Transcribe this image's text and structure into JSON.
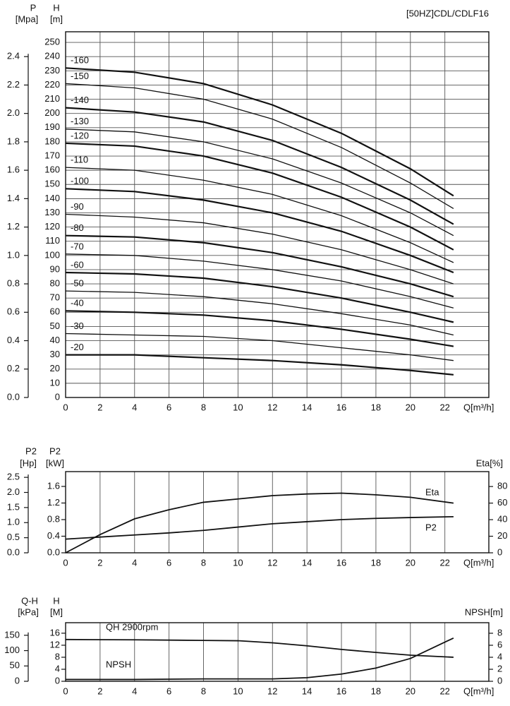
{
  "chart_data": [
    {
      "type": "line",
      "title": "[50HZ]CDL/CDLF16",
      "xlabel": "Q[m³/h]",
      "xlim": [
        0,
        24.55
      ],
      "xticks": [
        0,
        2,
        4,
        6,
        8,
        10,
        12,
        14,
        16,
        18,
        20,
        22
      ],
      "ylabel": "H",
      "yunit": "[m]",
      "ylim": [
        0,
        257.5
      ],
      "yticks": [
        0,
        10,
        20,
        30,
        40,
        50,
        60,
        70,
        80,
        90,
        100,
        110,
        120,
        130,
        140,
        150,
        160,
        170,
        180,
        190,
        200,
        210,
        220,
        230,
        240,
        250
      ],
      "y2label": "P",
      "y2unit": "[Mpa]",
      "y2side": "left",
      "y2lim": [
        0,
        2.575
      ],
      "y2ticks": [
        {
          "value": 0,
          "label": "0.0"
        },
        0.2,
        0.4,
        0.6,
        0.8,
        {
          "value": 1,
          "label": "1.0"
        },
        1.2,
        1.4,
        1.6,
        1.8,
        {
          "value": 2,
          "label": "2.0"
        },
        2.2,
        2.4
      ],
      "grid": "both",
      "x": [
        0,
        4,
        8,
        12,
        16,
        20,
        22.5
      ],
      "series": [
        {
          "name": "-160",
          "color": "#111111",
          "values": [
            232,
            229,
            221,
            206,
            186,
            161,
            142
          ]
        },
        {
          "name": "-150",
          "color": "#111111",
          "values": [
            221,
            218,
            210,
            196,
            176,
            151,
            133
          ]
        },
        {
          "name": "-140",
          "color": "#111111",
          "values": [
            204,
            201,
            194,
            181,
            162,
            139,
            122
          ]
        },
        {
          "name": "-130",
          "color": "#111111",
          "values": [
            189,
            187,
            180,
            168,
            151,
            130,
            114
          ]
        },
        {
          "name": "-120",
          "color": "#111111",
          "values": [
            179,
            177,
            170,
            158,
            141,
            120,
            104
          ]
        },
        {
          "name": "-110",
          "color": "#111111",
          "values": [
            162,
            160,
            153,
            143,
            128,
            109,
            95
          ]
        },
        {
          "name": "-100",
          "color": "#111111",
          "values": [
            147,
            145,
            139,
            130,
            117,
            100,
            88
          ]
        },
        {
          "name": "-90",
          "color": "#111111",
          "values": [
            129,
            127,
            123,
            115,
            104,
            90,
            80
          ]
        },
        {
          "name": "-80",
          "color": "#111111",
          "values": [
            114,
            113,
            109,
            102,
            92,
            80,
            71
          ]
        },
        {
          "name": "-70",
          "color": "#111111",
          "values": [
            101,
            100,
            96,
            90,
            82,
            71,
            63
          ]
        },
        {
          "name": "-60",
          "color": "#111111",
          "values": [
            88,
            87,
            84,
            78,
            70,
            60,
            53
          ]
        },
        {
          "name": "-50",
          "color": "#111111",
          "values": [
            75,
            74,
            71,
            66,
            59,
            51,
            44
          ]
        },
        {
          "name": "-40",
          "color": "#111111",
          "values": [
            61,
            60,
            58,
            54,
            48,
            41,
            36
          ]
        },
        {
          "name": "-30",
          "color": "#111111",
          "values": [
            45,
            44,
            43,
            40,
            35,
            30,
            26
          ]
        },
        {
          "name": "-20",
          "color": "#111111",
          "values": [
            30,
            30,
            28,
            26,
            23,
            19,
            16
          ]
        }
      ]
    },
    {
      "type": "line",
      "xlabel": "Q[m³/h]",
      "xlim": [
        0,
        24.55
      ],
      "xticks": [
        0,
        2,
        4,
        6,
        8,
        10,
        12,
        14,
        16,
        18,
        20,
        22
      ],
      "ylabel": "P2",
      "yunit": "[kW]",
      "ylim": [
        0,
        1.957
      ],
      "yticks": [
        {
          "value": 0,
          "label": "0.0"
        },
        0.4,
        0.8,
        1.2,
        1.6
      ],
      "y2label": "Eta[%]",
      "y2side": "right",
      "y2lim": [
        0,
        98
      ],
      "y2ticks": [
        0,
        20,
        40,
        60,
        80
      ],
      "y3label": "P2",
      "y3unit": "[Hp]",
      "y3side": "left",
      "y3lim": [
        0,
        2.69
      ],
      "y3ticks": [
        {
          "value": 0,
          "label": "0.0"
        },
        0.5,
        {
          "value": 1,
          "label": "1.0"
        },
        1.5,
        {
          "value": 2,
          "label": "2.0"
        },
        2.5
      ],
      "grid": "x",
      "x": [
        0,
        2,
        4,
        6,
        8,
        10,
        12,
        14,
        16,
        18,
        20,
        22.5
      ],
      "series": [
        {
          "name": "Eta",
          "color": "#111111",
          "axis": "y2",
          "values": [
            0,
            22,
            41,
            52,
            61,
            65,
            69,
            71,
            72,
            70,
            67,
            60
          ]
        },
        {
          "name": "P2",
          "color": "#111111",
          "values": [
            0.33,
            0.38,
            0.43,
            0.48,
            0.54,
            0.62,
            0.7,
            0.75,
            0.8,
            0.83,
            0.85,
            0.87
          ]
        }
      ]
    },
    {
      "type": "line",
      "xlabel": "Q[m³/h]",
      "xlim": [
        0,
        24.55
      ],
      "xticks": [
        0,
        2,
        4,
        6,
        8,
        10,
        12,
        14,
        16,
        18,
        20,
        22
      ],
      "ylabel": "H",
      "yunit": "[M]",
      "ylim": [
        0,
        19.5
      ],
      "yticks": [
        0,
        4,
        8,
        12,
        16
      ],
      "y2label": "NPSH[m]",
      "y2side": "right",
      "y2lim": [
        0,
        9.76
      ],
      "y2ticks": [
        0,
        2,
        4,
        6,
        8
      ],
      "y3label": "Q-H",
      "y3unit": "[kPa]",
      "y3side": "left",
      "y3lim": [
        0,
        191
      ],
      "y3ticks": [
        0,
        50,
        100,
        150
      ],
      "grid": "x",
      "x": [
        0,
        4,
        8,
        10,
        12,
        14,
        16,
        18,
        20,
        22.5
      ],
      "series": [
        {
          "name": "QH 2900rpm",
          "color": "#111111",
          "values": [
            13.9,
            13.8,
            13.6,
            13.5,
            12.8,
            11.8,
            10.6,
            9.6,
            8.7,
            8.0
          ]
        },
        {
          "name": "NPSH",
          "color": "#111111",
          "axis": "y2",
          "values": [
            0.3,
            0.3,
            0.4,
            0.4,
            0.4,
            0.6,
            1.2,
            2.2,
            3.8,
            7.2
          ]
        }
      ]
    }
  ]
}
